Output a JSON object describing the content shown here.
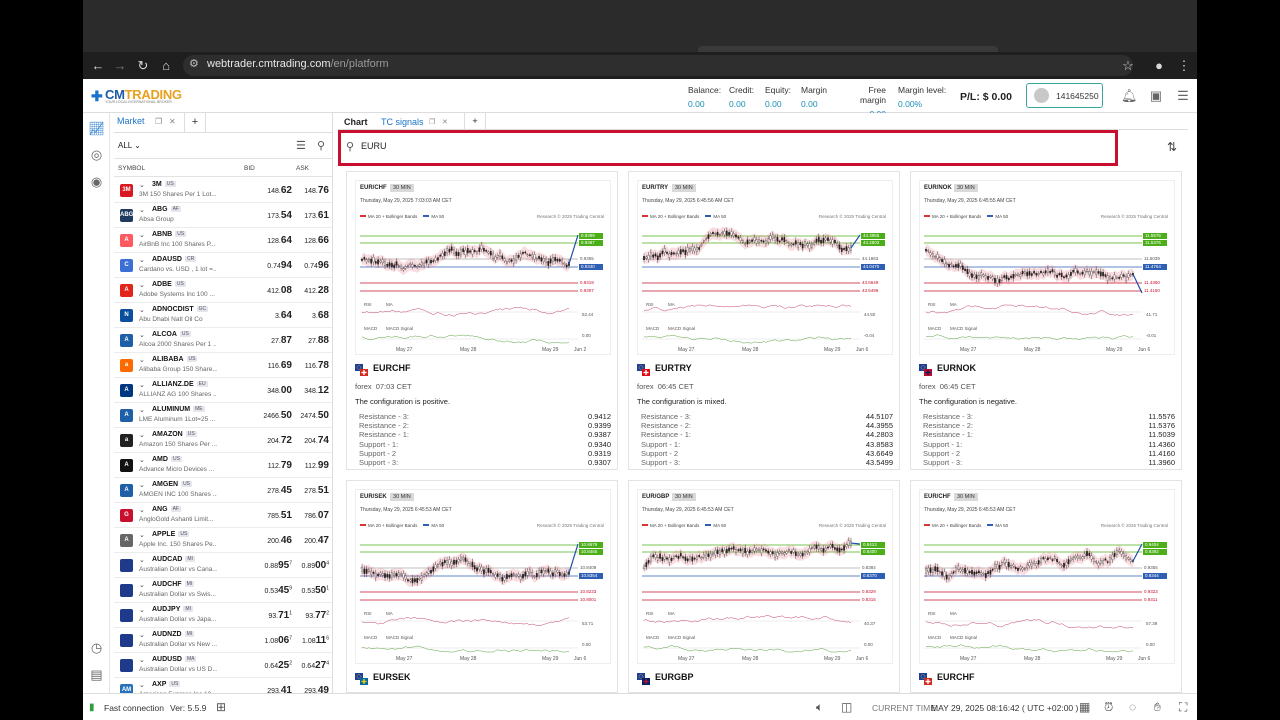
{
  "browser": {
    "url_host": "webtrader.cmtrading.com",
    "url_path": "/en/platform"
  },
  "header": {
    "brand": "CMTRADING",
    "brand_cm": "CM",
    "brand_rest": "TRADING",
    "tagline": "YOUR LOCAL INTERNATIONAL BROKER",
    "account": [
      {
        "label": "Balance:",
        "value": "0.00"
      },
      {
        "label": "Credit:",
        "value": "0.00"
      },
      {
        "label": "Equity:",
        "value": "0.00"
      },
      {
        "label": "Margin",
        "value": "0.00"
      },
      {
        "label": "Free margin",
        "value": "0.00"
      },
      {
        "label": "Margin level:",
        "value": "0.00%"
      }
    ],
    "pl_label": "P/L:",
    "pl_value": "$ 0.00",
    "account_number": "141645250"
  },
  "market": {
    "tab_label": "Market",
    "filter": "ALL",
    "columns": {
      "symbol": "SYMBOL",
      "bid": "BID",
      "ask": "ASK"
    },
    "rows": [
      {
        "symbol": "3M",
        "tag": "US",
        "desc": "3M 150 Shares Per 1 Lot...",
        "bid_a": "148.",
        "bid_b": "62",
        "ask_a": "148.",
        "ask_b": "76",
        "color": "#d71920",
        "icon": "3M"
      },
      {
        "symbol": "ABG",
        "tag": "AF",
        "desc": "Absa Group",
        "bid_a": "173.",
        "bid_b": "54",
        "ask_a": "173.",
        "ask_b": "61",
        "color": "#1f3a5f",
        "icon": "ABG"
      },
      {
        "symbol": "ABNB",
        "tag": "US",
        "desc": "AirBnB Inc 100 Shares P...",
        "bid_a": "128.",
        "bid_b": "64",
        "ask_a": "128.",
        "ask_b": "66",
        "color": "#ff5a5f",
        "icon": "A"
      },
      {
        "symbol": "ADAUSD",
        "tag": "CR",
        "desc": "Cardano vs. USD , 1 lot =...",
        "bid_a": "0.74",
        "bid_b": "94",
        "ask_a": "0.74",
        "ask_b": "96",
        "color": "#3c6fd6",
        "icon": "C"
      },
      {
        "symbol": "ADBE",
        "tag": "US",
        "desc": "Adobe Systems Inc 100 ...",
        "bid_a": "412.",
        "bid_b": "08",
        "ask_a": "412.",
        "ask_b": "28",
        "color": "#e1251b",
        "icon": "A"
      },
      {
        "symbol": "ADNOCDIST",
        "tag": "GC",
        "desc": "Abu Dhabi Natl Oil Co",
        "bid_a": "3.",
        "bid_b": "64",
        "ask_a": "3.",
        "ask_b": "68",
        "color": "#0b4f9c",
        "icon": "N"
      },
      {
        "symbol": "ALCOA",
        "tag": "US",
        "desc": "Alcoa 2000 Shares Per 1 ...",
        "bid_a": "27.",
        "bid_b": "87",
        "ask_a": "27.",
        "ask_b": "88",
        "color": "#1f5fa8",
        "icon": "A"
      },
      {
        "symbol": "ALIBABA",
        "tag": "US",
        "desc": "Alibaba Group 150 Share...",
        "bid_a": "116.",
        "bid_b": "69",
        "ask_a": "116.",
        "ask_b": "78",
        "color": "#ff6a00",
        "icon": "a"
      },
      {
        "symbol": "ALLIANZ.DE",
        "tag": "EU",
        "desc": "ALLIANZ AG 100 Shares ...",
        "bid_a": "348.",
        "bid_b": "00",
        "ask_a": "348.",
        "ask_b": "12",
        "color": "#003781",
        "icon": "A"
      },
      {
        "symbol": "ALUMINUM",
        "tag": "ME",
        "desc": "LME Aluminum 1Lot=25 ...",
        "bid_a": "2466.",
        "bid_b": "50",
        "ask_a": "2474.",
        "ask_b": "50",
        "color": "#1f5fa8",
        "icon": "A"
      },
      {
        "symbol": "AMAZON",
        "tag": "US",
        "desc": "Amazon 150 Shares Per ...",
        "bid_a": "204.",
        "bid_b": "72",
        "ask_a": "204.",
        "ask_b": "74",
        "color": "#222",
        "icon": "a"
      },
      {
        "symbol": "AMD",
        "tag": "US",
        "desc": "Advance Micro Devices ...",
        "bid_a": "112.",
        "bid_b": "79",
        "ask_a": "112.",
        "ask_b": "99",
        "color": "#111",
        "icon": "A"
      },
      {
        "symbol": "AMGEN",
        "tag": "US",
        "desc": "AMGEN INC 100 Shares ...",
        "bid_a": "278.",
        "bid_b": "45",
        "ask_a": "278.",
        "ask_b": "51",
        "color": "#1f5fa8",
        "icon": "A"
      },
      {
        "symbol": "ANG",
        "tag": "AF",
        "desc": "AngloGold Ashanti Limit...",
        "bid_a": "785.",
        "bid_b": "51",
        "ask_a": "786.",
        "ask_b": "07",
        "color": "#c8102e",
        "icon": "G"
      },
      {
        "symbol": "APPLE",
        "tag": "US",
        "desc": "Apple Inc. 150 Shares Pe...",
        "bid_a": "200.",
        "bid_b": "46",
        "ask_a": "200.",
        "ask_b": "47",
        "color": "#666",
        "icon": "A"
      },
      {
        "symbol": "AUDCAD",
        "tag": "MI",
        "desc": "Australian Dollar vs Cana...",
        "bid_a": "0.88",
        "bid_b": "95",
        "bid_c": "7",
        "ask_a": "0.89",
        "ask_b": "00",
        "ask_c": "4",
        "color": "#1e3a8a",
        "icon": ""
      },
      {
        "symbol": "AUDCHF",
        "tag": "MI",
        "desc": "Australian Dollar vs Swis...",
        "bid_a": "0.53",
        "bid_b": "45",
        "bid_c": "9",
        "ask_a": "0.53",
        "ask_b": "50",
        "ask_c": "1",
        "color": "#1e3a8a",
        "icon": ""
      },
      {
        "symbol": "AUDJPY",
        "tag": "MI",
        "desc": "Australian Dollar vs Japa...",
        "bid_a": "93.",
        "bid_b": "71",
        "bid_c": "1",
        "ask_a": "93.",
        "ask_b": "77",
        "ask_c": "2",
        "color": "#1e3a8a",
        "icon": ""
      },
      {
        "symbol": "AUDNZD",
        "tag": "MI",
        "desc": "Australian Dollar vs New ...",
        "bid_a": "1.08",
        "bid_b": "06",
        "bid_c": "7",
        "ask_a": "1.08",
        "ask_b": "11",
        "ask_c": "6",
        "color": "#1e3a8a",
        "icon": ""
      },
      {
        "symbol": "AUDUSD",
        "tag": "MA",
        "desc": "Australian Dollar vs US D...",
        "bid_a": "0.64",
        "bid_b": "25",
        "bid_c": "2",
        "ask_a": "0.64",
        "ask_b": "27",
        "ask_c": "4",
        "color": "#1e3a8a",
        "icon": ""
      },
      {
        "symbol": "AXP",
        "tag": "US",
        "desc": "American Express Inc 10...",
        "bid_a": "293.",
        "bid_b": "41",
        "ask_a": "293.",
        "ask_b": "49",
        "color": "#2671b9",
        "icon": "AM"
      }
    ]
  },
  "main": {
    "tabs": {
      "chart": "Chart",
      "tc_signals": "TC signals"
    },
    "search_value": "EURU",
    "cards": [
      {
        "pair_chart": "EUR/CHF",
        "tf": "30 MIN",
        "datetime": "Thursday, May 29, 2025 7:03:03 AM CET",
        "title": "EURCHF",
        "market": "forex",
        "time": "07:03 CET",
        "config": "The configuration is positive.",
        "levels": [
          [
            "Resistance - 3:",
            "0.9412"
          ],
          [
            "Resistance - 2:",
            "0.9399"
          ],
          [
            "Resistance - 1:",
            "0.9387"
          ],
          [
            "Support - 1:",
            "0.9340"
          ],
          [
            "Support - 2",
            "0.9319"
          ],
          [
            "Support - 3:",
            "0.9307"
          ]
        ],
        "chart_levels": [
          "0.9399",
          "0.9387",
          "0.9355",
          "0.9340",
          "0.9319",
          "0.9307"
        ],
        "rsi_vals": [
          "52.44",
          ""
        ],
        "macd_val": "0.00",
        "dates": [
          "May 27",
          "May 28",
          "May 29",
          "Jun 2"
        ],
        "flag": "CHF",
        "trend": "up"
      },
      {
        "pair_chart": "EUR/TRY",
        "tf": "30 MIN",
        "datetime": "Thursday, May 29, 2025 6:45:56 AM CET",
        "title": "EURTRY",
        "market": "forex",
        "time": "06:45 CET",
        "config": "The configuration is mixed.",
        "levels": [
          [
            "Resistance - 3:",
            "44.5107"
          ],
          [
            "Resistance - 2:",
            "44.3955"
          ],
          [
            "Resistance - 1:",
            "44.2803"
          ],
          [
            "Support - 1:",
            "43.8583"
          ],
          [
            "Support - 2",
            "43.6649"
          ],
          [
            "Support - 3:",
            "43.5499"
          ]
        ],
        "chart_levels": [
          "44.3955",
          "44.2803",
          "44.1863",
          "44.0470",
          "43.6649",
          "43.5499"
        ],
        "rsi_vals": [
          "44.50",
          ""
        ],
        "macd_val": "-0.04",
        "dates": [
          "May 27",
          "May 28",
          "May 29",
          "Jun 6"
        ],
        "flag": "TRY",
        "trend": "up"
      },
      {
        "pair_chart": "EUR/NOK",
        "tf": "30 MIN",
        "datetime": "Thursday, May 29, 2025 6:45:55 AM CET",
        "title": "EURNOK",
        "market": "forex",
        "time": "06:45 CET",
        "config": "The configuration is negative.",
        "levels": [
          [
            "Resistance - 3:",
            "11.5576"
          ],
          [
            "Resistance - 2:",
            "11.5376"
          ],
          [
            "Resistance - 1:",
            "11.5039"
          ],
          [
            "Support - 1:",
            "11.4360"
          ],
          [
            "Support - 2",
            "11.4160"
          ],
          [
            "Support - 3:",
            "11.3960"
          ]
        ],
        "chart_levels": [
          "11.5576",
          "11.5376",
          "11.5039",
          "11.4764",
          "11.4360",
          "11.4160"
        ],
        "rsi_vals": [
          "41.71",
          ""
        ],
        "macd_val": "-0.01",
        "dates": [
          "May 27",
          "May 28",
          "May 29",
          "Jun 6"
        ],
        "flag": "NOK",
        "trend": "down"
      },
      {
        "pair_chart": "EUR/SEK",
        "tf": "30 MIN",
        "datetime": "Thursday, May 29, 2025 6:45:53 AM CET",
        "title": "EURSEK",
        "market": "forex",
        "time": "",
        "config": "",
        "levels": [],
        "chart_levels": [
          "10.8679",
          "10.8465",
          "10.8409",
          "10.8354",
          "10.8233",
          "10.8001"
        ],
        "rsi_vals": [
          "53.71",
          ""
        ],
        "macd_val": "0.00",
        "dates": [
          "May 27",
          "May 28",
          "May 29",
          "Jun 6"
        ],
        "flag": "SEK",
        "trend": "up"
      },
      {
        "pair_chart": "EUR/GBP",
        "tf": "30 MIN",
        "datetime": "Thursday, May 29, 2025 6:45:53 AM CET",
        "title": "EURGBP",
        "market": "forex",
        "time": "",
        "config": "",
        "levels": [],
        "chart_levels": [
          "0.8413",
          "0.8400",
          "0.8384",
          "0.8370",
          "0.8329",
          "0.8315"
        ],
        "rsi_vals": [
          "40.37",
          ""
        ],
        "macd_val": "0.00",
        "dates": [
          "May 27",
          "May 28",
          "May 29",
          "Jun 6"
        ],
        "flag": "GBP",
        "trend": "up"
      },
      {
        "pair_chart": "EUR/CHF",
        "tf": "30 MIN",
        "datetime": "Thursday, May 29, 2025 6:45:53 AM CET",
        "title": "EURCHF",
        "market": "forex",
        "time": "",
        "config": "",
        "levels": [],
        "chart_levels": [
          "0.9404",
          "0.9392",
          "0.9355",
          "0.9344",
          "0.9323",
          "0.9311"
        ],
        "rsi_vals": [
          "57.39",
          ""
        ],
        "macd_val": "0.00",
        "dates": [
          "May 27",
          "May 28",
          "May 29",
          "Jun 6"
        ],
        "flag": "CHF",
        "trend": "up"
      }
    ]
  },
  "status": {
    "connection": "Fast connection",
    "version": "Ver: 5.5.9",
    "time_label": "CURRENT TIME:",
    "time_value": "MAY 29, 2025 08:16:42 ( UTC +02:00 )"
  },
  "chart_texts": {
    "research": "Research © 2025 Trading Central",
    "bb": "MA 20 + Bollinger Bands",
    "ma50": "MA 50",
    "rsi": "RSI",
    "ma": "MA",
    "macd": "MACD",
    "macd_signal": "MACD Signal"
  },
  "colors": {
    "accent": "#1a73c8",
    "search_border": "#c8102e",
    "resistance": "#4caf1a",
    "support": "#c8102e"
  }
}
